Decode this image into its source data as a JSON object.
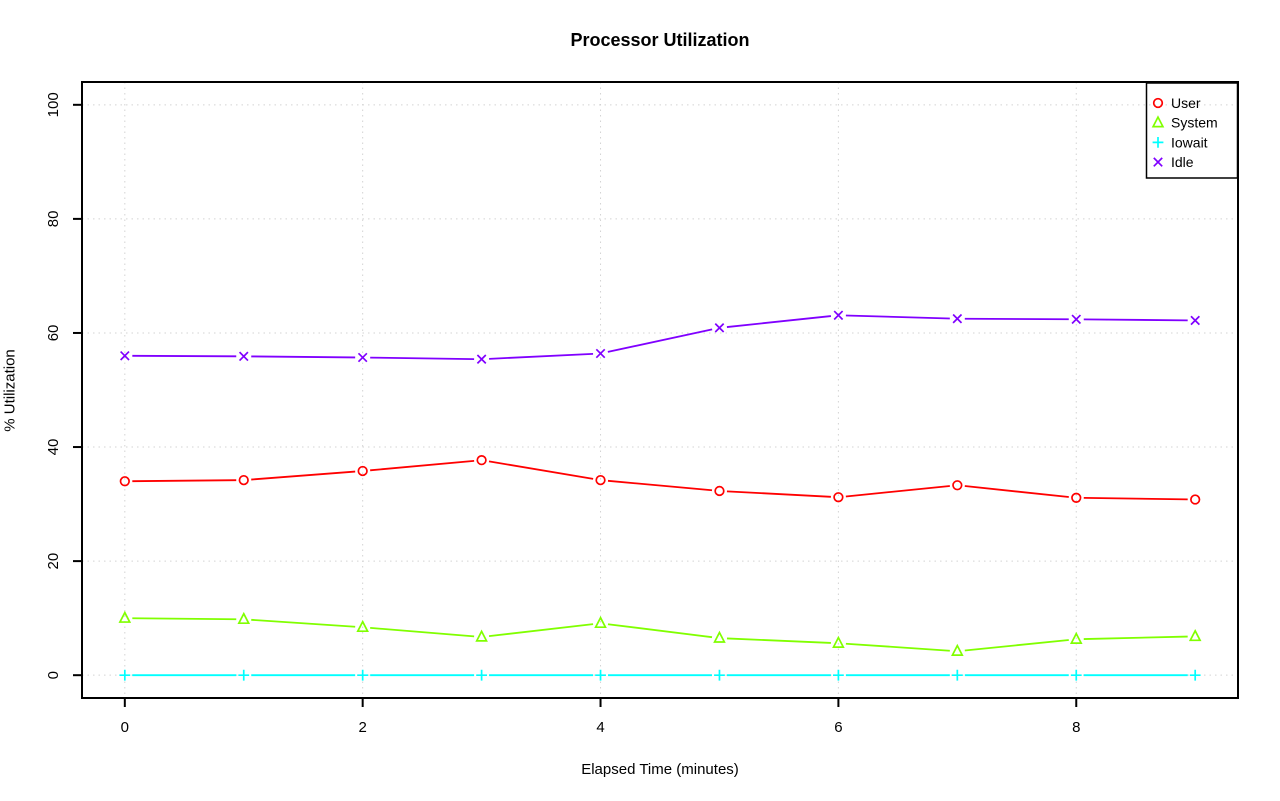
{
  "chart_data": {
    "type": "line",
    "title": "Processor Utilization",
    "xlabel": "Elapsed Time (minutes)",
    "ylabel": "% Utilization",
    "x": [
      0,
      1,
      2,
      3,
      4,
      5,
      6,
      7,
      8,
      9
    ],
    "series": [
      {
        "name": "User",
        "color": "#FF0000",
        "marker": "circle",
        "values": [
          34.0,
          34.2,
          35.8,
          37.7,
          34.2,
          32.3,
          31.2,
          33.3,
          31.1,
          30.8
        ]
      },
      {
        "name": "System",
        "color": "#80FF00",
        "marker": "triangle",
        "values": [
          10.0,
          9.8,
          8.4,
          6.7,
          9.1,
          6.5,
          5.6,
          4.2,
          6.3,
          6.8
        ]
      },
      {
        "name": "Iowait",
        "color": "#00FFFF",
        "marker": "plus",
        "values": [
          0,
          0,
          0,
          0,
          0,
          0,
          0,
          0,
          0,
          0
        ]
      },
      {
        "name": "Idle",
        "color": "#8000FF",
        "marker": "x",
        "values": [
          56.0,
          55.9,
          55.7,
          55.4,
          56.4,
          60.9,
          63.1,
          62.5,
          62.4,
          62.2
        ]
      }
    ],
    "xticks": [
      0,
      2,
      4,
      6,
      8
    ],
    "yticks": [
      0,
      20,
      40,
      60,
      80,
      100
    ],
    "xlim": [
      0,
      9
    ],
    "ylim": [
      0,
      100
    ],
    "grid": "dotted",
    "line_style": "points-and-lines",
    "legend_position": "top-right"
  },
  "colors": {
    "background": "#FFFFFF",
    "axis": "#000000",
    "grid": "#D3D3D3"
  }
}
